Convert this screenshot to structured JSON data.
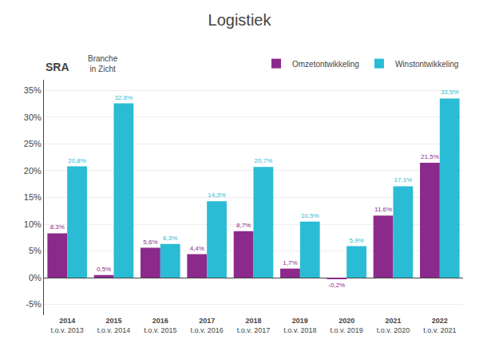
{
  "chart_data": {
    "type": "bar",
    "title": "Logistiek",
    "categories": [
      "2014\nt.o.v. 2013",
      "2015\nt.o.v. 2014",
      "2016\nt.o.v. 2015",
      "2017\nt.o.v. 2016",
      "2018\nt.o.v. 2017",
      "2019\nt.o.v. 2018",
      "2020\nt.o.v. 2019",
      "2021\nt.o.v. 2020",
      "2022\nt.o.v. 2021"
    ],
    "series": [
      {
        "name": "Omzetontwikkeling",
        "color": "#8B2A8B",
        "values": [
          8.3,
          0.5,
          5.6,
          4.4,
          8.7,
          1.7,
          -0.2,
          11.6,
          21.5
        ],
        "value_labels": [
          "8,3%",
          "0,5%",
          "5,6%",
          "4,4%",
          "8,7%",
          "1,7%",
          "-0,2%",
          "11,6%",
          "21,5%"
        ]
      },
      {
        "name": "Winstontwikkeling",
        "color": "#29BCD4",
        "values": [
          20.8,
          32.6,
          6.3,
          14.3,
          20.7,
          10.5,
          5.9,
          17.1,
          33.5
        ],
        "value_labels": [
          "20,8%",
          "32,6%",
          "6,3%",
          "14,3%",
          "20,7%",
          "10,5%",
          "5,9%",
          "17,1%",
          "33,5%"
        ]
      }
    ],
    "ylim": [
      -7,
      37
    ],
    "yticks": [
      {
        "value": -5,
        "label": "-5%"
      },
      {
        "value": 0,
        "label": "0%"
      },
      {
        "value": 5,
        "label": "5%"
      },
      {
        "value": 10,
        "label": "10%"
      },
      {
        "value": 15,
        "label": "15%"
      },
      {
        "value": 20,
        "label": "20%"
      },
      {
        "value": 25,
        "label": "25%"
      },
      {
        "value": 30,
        "label": "30%"
      },
      {
        "value": 35,
        "label": "35%"
      }
    ],
    "grid": true,
    "legend": "upper right",
    "data_labels": true,
    "annotations": [
      "SRA",
      "Branche\nin Zicht"
    ]
  }
}
